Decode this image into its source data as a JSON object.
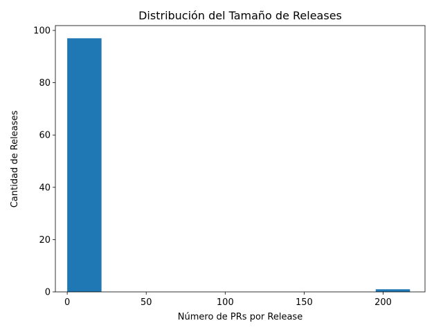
{
  "chart_data": {
    "type": "bar",
    "subtype": "histogram",
    "title": "Distribución del Tamaño de Releases",
    "xlabel": "Número de PRs por Release",
    "ylabel": "Cantidad de Releases",
    "xlim": [
      -7.5,
      226.5
    ],
    "ylim": [
      0,
      101.85
    ],
    "xticks": [
      0,
      50,
      100,
      150,
      200
    ],
    "yticks": [
      0,
      20,
      40,
      60,
      80,
      100
    ],
    "bins": [
      {
        "start": 0,
        "end": 21.7,
        "count": 97
      },
      {
        "start": 21.7,
        "end": 43.4,
        "count": 0
      },
      {
        "start": 43.4,
        "end": 65.1,
        "count": 0
      },
      {
        "start": 65.1,
        "end": 86.8,
        "count": 0
      },
      {
        "start": 86.8,
        "end": 108.5,
        "count": 0
      },
      {
        "start": 108.5,
        "end": 130.2,
        "count": 0
      },
      {
        "start": 130.2,
        "end": 151.9,
        "count": 0
      },
      {
        "start": 151.9,
        "end": 173.6,
        "count": 0
      },
      {
        "start": 173.6,
        "end": 195.3,
        "count": 0
      },
      {
        "start": 195.3,
        "end": 217,
        "count": 1
      }
    ],
    "bar_color": "#1f77b4",
    "grid": false,
    "legend": "none"
  }
}
